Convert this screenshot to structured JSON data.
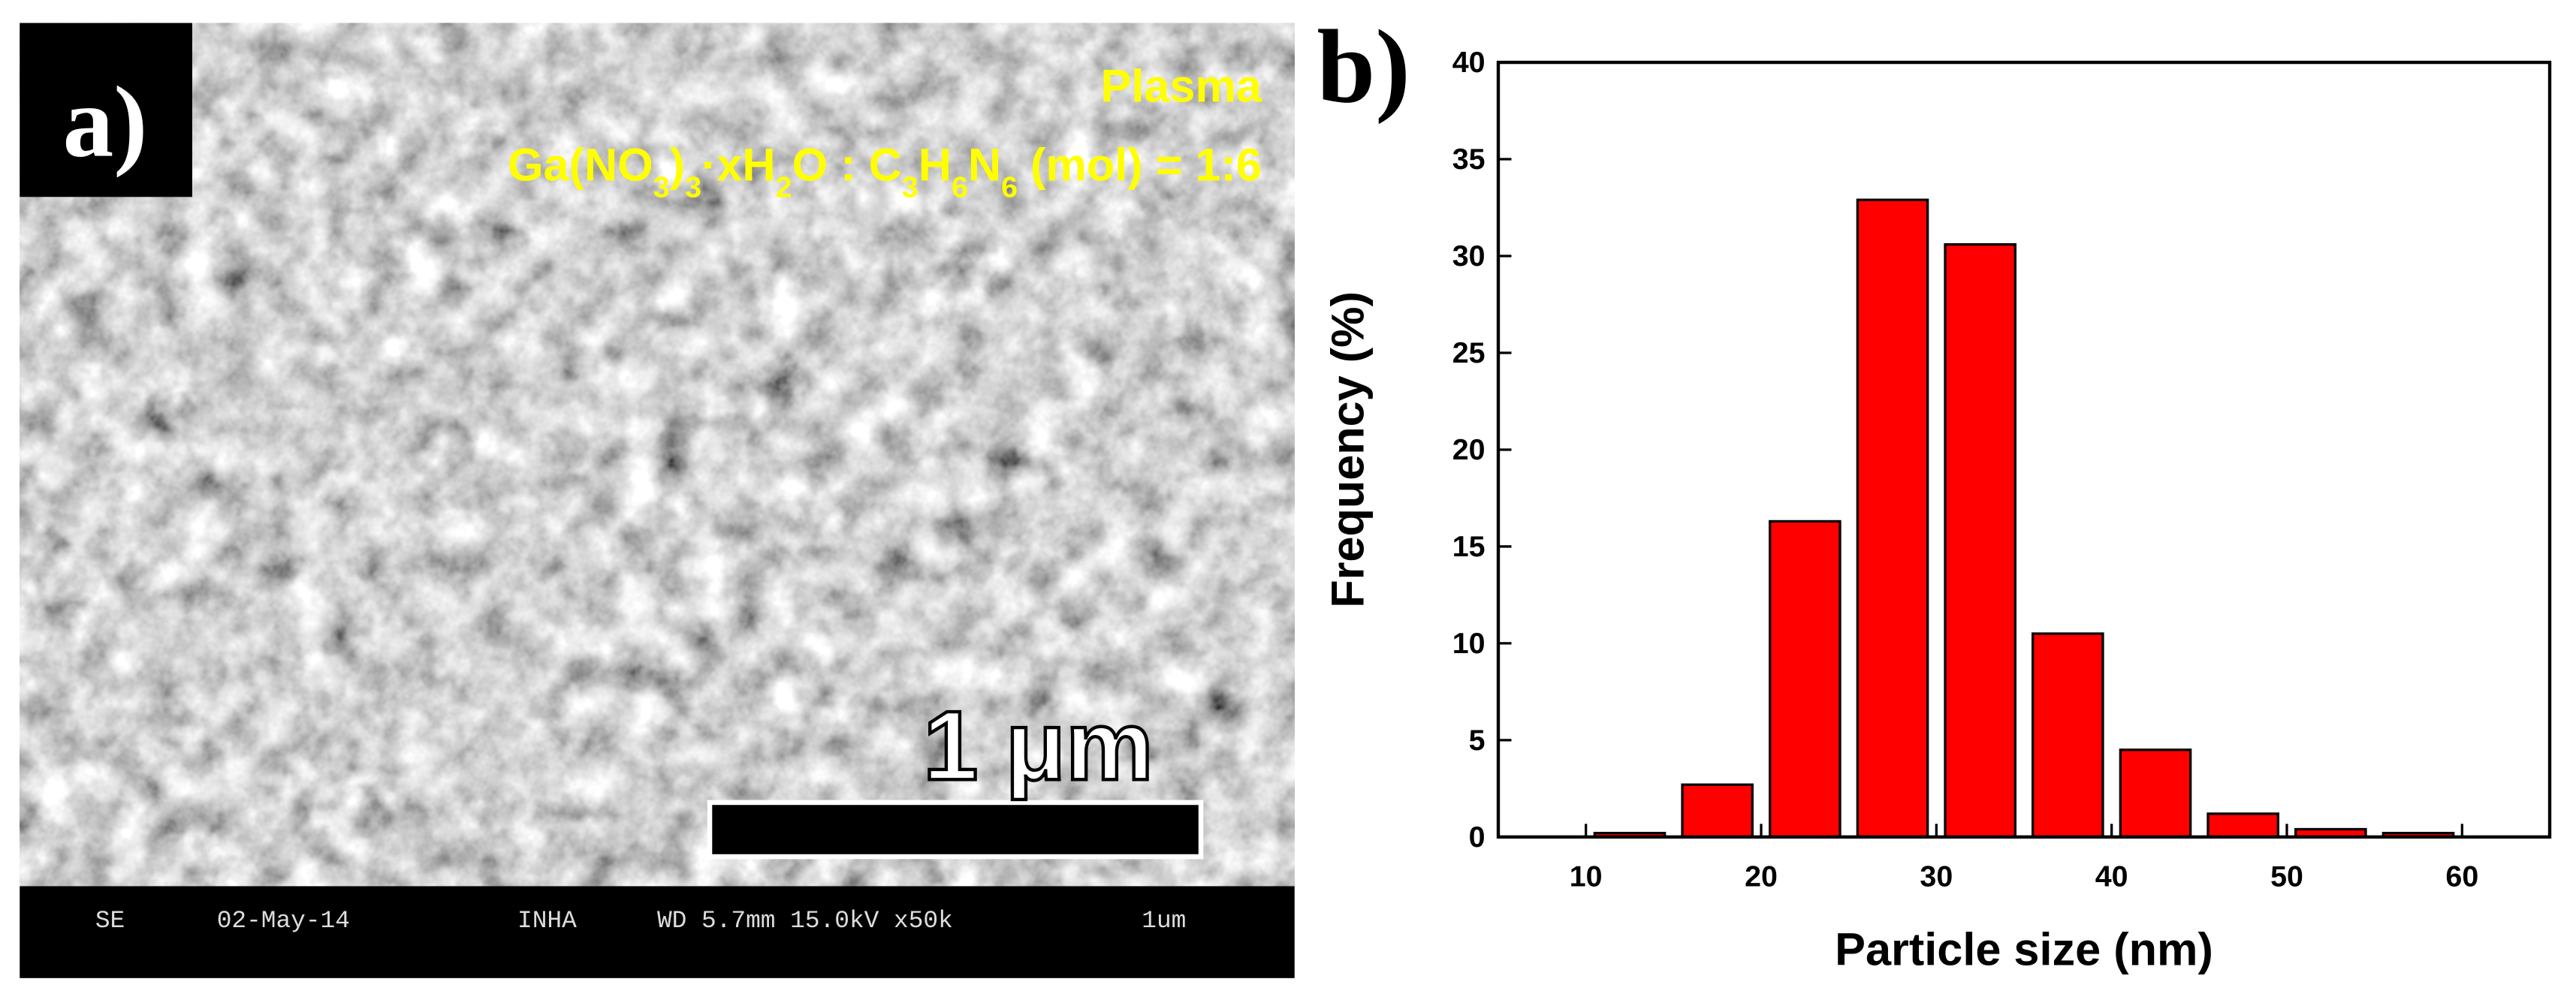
{
  "panel_a": {
    "label": "a)",
    "annotation": "Plasma",
    "formula": [
      {
        "text": "Ga(NO",
        "sub": false
      },
      {
        "text": "3",
        "sub": true
      },
      {
        "text": ")",
        "sub": false
      },
      {
        "text": "3",
        "sub": true
      },
      {
        "text": "·xH",
        "sub": false
      },
      {
        "text": "2",
        "sub": true
      },
      {
        "text": "O : C",
        "sub": false
      },
      {
        "text": "3",
        "sub": true
      },
      {
        "text": "H",
        "sub": false
      },
      {
        "text": "6",
        "sub": true
      },
      {
        "text": "N",
        "sub": false
      },
      {
        "text": "6",
        "sub": true
      },
      {
        "text": " (mol) = 1:6",
        "sub": false
      }
    ],
    "scale_bar": "1 μm",
    "info_bar": [
      "SE",
      "02-May-14",
      "INHA",
      "WD 5.7mm 15.0kV x50k",
      "1um"
    ]
  },
  "chart_data": {
    "type": "histogram",
    "panel_label": "b)",
    "x_label": "Particle size (nm)",
    "y_label": "Frequency (%)",
    "bins": [
      10,
      15,
      20,
      25,
      30,
      35,
      40,
      45,
      50,
      55,
      60
    ],
    "values": [
      0.2,
      2.7,
      16.3,
      32.9,
      30.6,
      10.5,
      4.5,
      1.2,
      0.4,
      0.2
    ],
    "color": "#ff0000",
    "xlim": [
      5,
      65
    ],
    "xticks": [
      10,
      20,
      30,
      40,
      50,
      60
    ],
    "ylim": [
      0,
      40
    ],
    "yticks": [
      0,
      5,
      10,
      15,
      20,
      25,
      30,
      35,
      40
    ]
  }
}
